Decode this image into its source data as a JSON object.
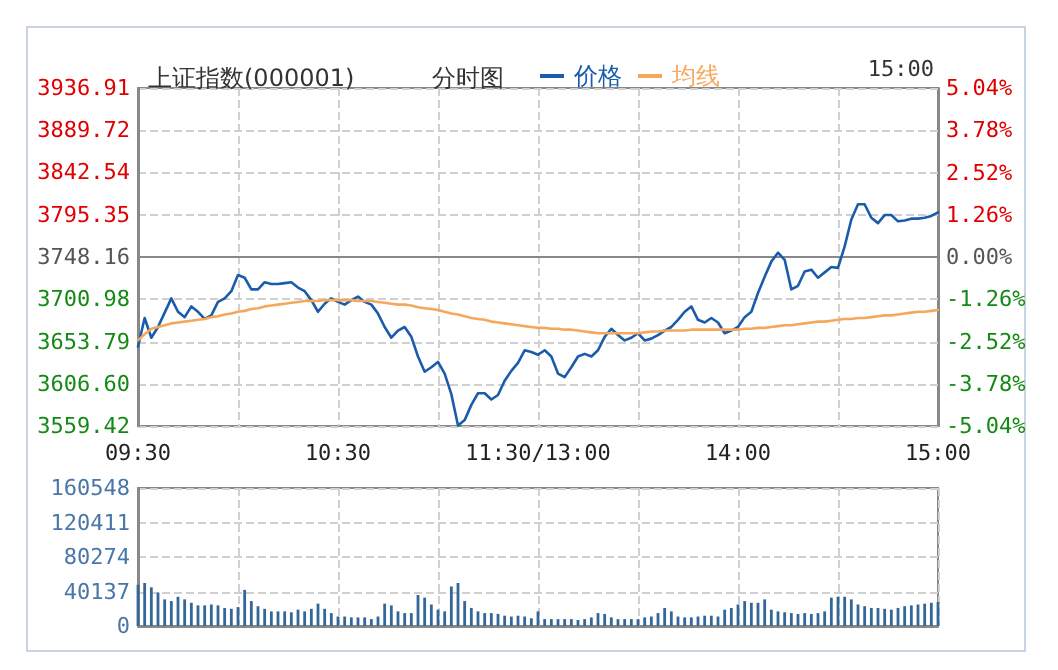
{
  "chart_data": [
    {
      "type": "line",
      "title": "上证指数(000001)",
      "subtitle": "分时图",
      "annotations": [
        "15:00"
      ],
      "categories": [
        "09:30",
        null,
        null,
        null,
        null,
        null,
        null,
        null,
        null,
        null,
        null,
        null,
        null,
        null,
        null,
        null,
        null,
        null,
        null,
        null,
        null,
        null,
        null,
        null,
        null,
        null,
        null,
        null,
        null,
        null,
        "10:30",
        null,
        null,
        null,
        null,
        null,
        null,
        null,
        null,
        null,
        null,
        null,
        null,
        null,
        null,
        null,
        null,
        null,
        null,
        null,
        null,
        null,
        null,
        null,
        null,
        null,
        null,
        null,
        null,
        null,
        "11:30/13:00",
        null,
        null,
        null,
        null,
        null,
        null,
        null,
        null,
        null,
        null,
        null,
        null,
        null,
        null,
        null,
        null,
        null,
        null,
        null,
        null,
        null,
        null,
        null,
        null,
        null,
        null,
        null,
        null,
        null,
        "14:00",
        null,
        null,
        null,
        null,
        null,
        null,
        null,
        null,
        null,
        null,
        null,
        null,
        null,
        null,
        null,
        null,
        null,
        null,
        null,
        null,
        null,
        null,
        null,
        null,
        null,
        null,
        null,
        null,
        null,
        "15:00"
      ],
      "ylim": [
        3559.42,
        3936.91
      ],
      "yticks": [
        3559.42,
        {
          "value": 3606.6,
          "label": "3606.60"
        },
        3653.79,
        3700.98,
        3748.16,
        3795.35,
        3842.54,
        3889.72,
        3936.91
      ],
      "y2lim": [
        -5.04,
        5.04
      ],
      "y2ticks": [
        {
          "value": -5.04,
          "label": "-5.04%"
        },
        {
          "value": -3.78,
          "label": "-3.78%"
        },
        {
          "value": -2.52,
          "label": "-2.52%"
        },
        {
          "value": -1.26,
          "label": "-1.26%"
        },
        {
          "value": 0,
          "label": "0.00%"
        },
        {
          "value": 1.26,
          "label": "1.26%"
        },
        {
          "value": 2.52,
          "label": "2.52%"
        },
        {
          "value": 3.78,
          "label": "3.78%"
        },
        {
          "value": 5.04,
          "label": "5.04%"
        }
      ],
      "grid": true,
      "legend": "top",
      "marker": "none",
      "series": [
        {
          "name": "价格",
          "color": "#1a5cab",
          "values": [
            3648,
            3680,
            3658,
            3670,
            3686,
            3702,
            3687,
            3681,
            3693,
            3687,
            3679,
            3683,
            3698,
            3702,
            3710,
            3728,
            3725,
            3712,
            3712,
            3720,
            3718,
            3718,
            3719,
            3720,
            3714,
            3710,
            3700,
            3687,
            3696,
            3702,
            3698,
            3695,
            3700,
            3704,
            3698,
            3695,
            3685,
            3670,
            3658,
            3666,
            3670,
            3659,
            3637,
            3620,
            3625,
            3631,
            3618,
            3595,
            3560,
            3566,
            3583,
            3596,
            3596,
            3589,
            3594,
            3610,
            3621,
            3630,
            3644,
            3642,
            3639,
            3644,
            3637,
            3618,
            3614,
            3625,
            3637,
            3640,
            3637,
            3644,
            3659,
            3668,
            3661,
            3655,
            3658,
            3663,
            3655,
            3657,
            3661,
            3666,
            3670,
            3678,
            3687,
            3693,
            3678,
            3675,
            3680,
            3675,
            3663,
            3666,
            3670,
            3681,
            3687,
            3708,
            3726,
            3743,
            3753,
            3745,
            3712,
            3716,
            3732,
            3734,
            3725,
            3731,
            3737,
            3736,
            3760,
            3790,
            3807,
            3807,
            3792,
            3786,
            3795,
            3795,
            3788,
            3789,
            3791,
            3791,
            3792,
            3794,
            3798
          ]
        },
        {
          "name": "均线",
          "color": "#f5a85c",
          "values": [
            3655,
            3662,
            3668,
            3670,
            3672,
            3674,
            3675,
            3676,
            3677,
            3678,
            3679,
            3681,
            3682,
            3684,
            3685,
            3687,
            3688,
            3690,
            3691,
            3693,
            3694,
            3695,
            3696,
            3697,
            3698,
            3699,
            3699,
            3699,
            3700,
            3700,
            3700,
            3700,
            3700,
            3699,
            3699,
            3699,
            3698,
            3697,
            3696,
            3695,
            3695,
            3694,
            3692,
            3691,
            3690,
            3689,
            3687,
            3685,
            3684,
            3682,
            3680,
            3679,
            3678,
            3676,
            3675,
            3674,
            3673,
            3672,
            3671,
            3670,
            3669,
            3669,
            3668,
            3668,
            3667,
            3667,
            3666,
            3665,
            3664,
            3663,
            3663,
            3663,
            3663,
            3663,
            3663,
            3663,
            3664,
            3665,
            3665,
            3666,
            3666,
            3666,
            3666,
            3667,
            3667,
            3667,
            3667,
            3667,
            3667,
            3667,
            3667,
            3668,
            3668,
            3669,
            3669,
            3670,
            3671,
            3672,
            3672,
            3673,
            3674,
            3675,
            3676,
            3676,
            3677,
            3678,
            3679,
            3679,
            3680,
            3680,
            3681,
            3682,
            3683,
            3683,
            3684,
            3685,
            3686,
            3687,
            3687,
            3688,
            3689
          ]
        }
      ]
    },
    {
      "type": "bar",
      "categories": [
        null,
        null,
        null,
        null,
        null,
        null,
        null,
        null,
        null,
        null,
        null,
        null,
        null,
        null,
        null,
        null,
        null,
        null,
        null,
        null,
        null,
        null,
        null,
        null,
        null,
        null,
        null,
        null,
        null,
        null,
        null,
        null,
        null,
        null,
        null,
        null,
        null,
        null,
        null,
        null,
        null,
        null,
        null,
        null,
        null,
        null,
        null,
        null,
        null,
        null,
        null,
        null,
        null,
        null,
        null,
        null,
        null,
        null,
        null,
        null,
        null,
        null,
        null,
        null,
        null,
        null,
        null,
        null,
        null,
        null,
        null,
        null,
        null,
        null,
        null,
        null,
        null,
        null,
        null,
        null,
        null,
        null,
        null,
        null,
        null,
        null,
        null,
        null,
        null,
        null,
        null,
        null,
        null,
        null,
        null,
        null,
        null,
        null,
        null,
        null,
        null,
        null,
        null,
        null,
        null,
        null,
        null,
        null,
        null,
        null,
        null,
        null,
        null,
        null,
        null,
        null,
        null,
        null,
        null,
        null,
        null
      ],
      "ylim": [
        0,
        160548
      ],
      "yticks": [
        0,
        40137,
        80274,
        120411,
        160548
      ],
      "grid": true,
      "tick_labels": "y",
      "series": [
        {
          "color": "#336699",
          "values": [
            48000,
            50000,
            45000,
            39000,
            31000,
            29000,
            34000,
            31000,
            27000,
            24000,
            24000,
            25000,
            24000,
            21000,
            20000,
            22000,
            42000,
            29000,
            23000,
            20000,
            17000,
            17000,
            17000,
            16000,
            19000,
            17000,
            20000,
            26000,
            20000,
            15000,
            11000,
            11000,
            10000,
            10000,
            10000,
            8000,
            11000,
            26000,
            24000,
            17000,
            15000,
            15000,
            36000,
            33000,
            25000,
            19000,
            17000,
            46000,
            50000,
            29000,
            21000,
            17000,
            15000,
            15000,
            14000,
            12000,
            11000,
            12000,
            11000,
            9000,
            17000,
            8000,
            8000,
            8000,
            8000,
            8000,
            7000,
            8000,
            10000,
            15000,
            14000,
            10000,
            8000,
            8000,
            8000,
            8000,
            10000,
            11000,
            15000,
            21000,
            17000,
            11000,
            10000,
            10000,
            11000,
            12000,
            12000,
            11000,
            19000,
            21000,
            25000,
            29000,
            27000,
            27000,
            31000,
            19000,
            17000,
            16000,
            15000,
            14000,
            15000,
            14000,
            15000,
            17000,
            33000,
            34000,
            34000,
            31000,
            25000,
            23000,
            21000,
            21000,
            20000,
            19000,
            21000,
            23000,
            24000,
            25000,
            26000,
            27000,
            28000
          ]
        }
      ]
    }
  ]
}
